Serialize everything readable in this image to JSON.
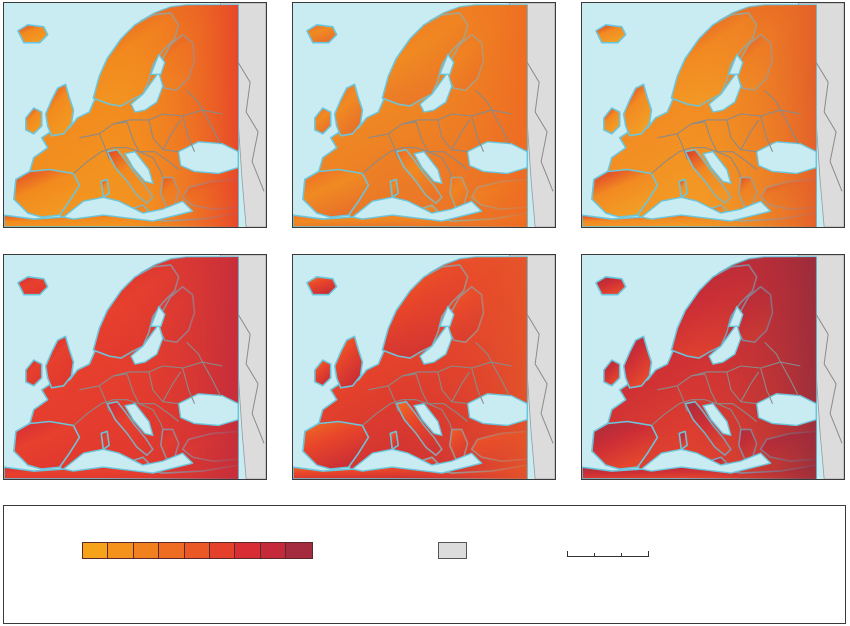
{
  "map": {
    "panel_count": 6,
    "rows": 2,
    "columns": 3,
    "colors": {
      "sea": "#c8ecf2",
      "coastline": "#6bc6dd",
      "borders": "#8a8a8a",
      "no_data": "#dcdcdc",
      "frame": "#3a3a3a"
    },
    "panels": [
      {
        "id": "panel-1",
        "base_color": "#f28a1e",
        "north_color": "#e0452a",
        "south_color": "#f39a22",
        "east_color": "#e6402a"
      },
      {
        "id": "panel-2",
        "base_color": "#f08a22",
        "north_color": "#ee6b26",
        "south_color": "#e8702a",
        "east_color": "#ee6a22"
      },
      {
        "id": "panel-3",
        "base_color": "#f28a22",
        "north_color": "#d8322e",
        "south_color": "#f2a026",
        "east_color": "#e25a2a"
      },
      {
        "id": "panel-4",
        "base_color": "#e7402e",
        "north_color": "#d22b35",
        "south_color": "#e0382e",
        "east_color": "#c22c3c"
      },
      {
        "id": "panel-5",
        "base_color": "#e8452a",
        "north_color": "#ee6e24",
        "south_color": "#c92d35",
        "east_color": "#e5562a"
      },
      {
        "id": "panel-6",
        "base_color": "#cc2e36",
        "north_color": "#a52f3e",
        "south_color": "#e84a2c",
        "east_color": "#952c3c"
      }
    ]
  },
  "legend": {
    "color_scale": [
      "#f6a31a",
      "#f4921c",
      "#f1801f",
      "#ee6d22",
      "#eb5826",
      "#e4402b",
      "#d92d35",
      "#c52a3b",
      "#a52c3f"
    ],
    "no_data_color": "#dcdcdc",
    "distance_scale_ticks": 3
  }
}
